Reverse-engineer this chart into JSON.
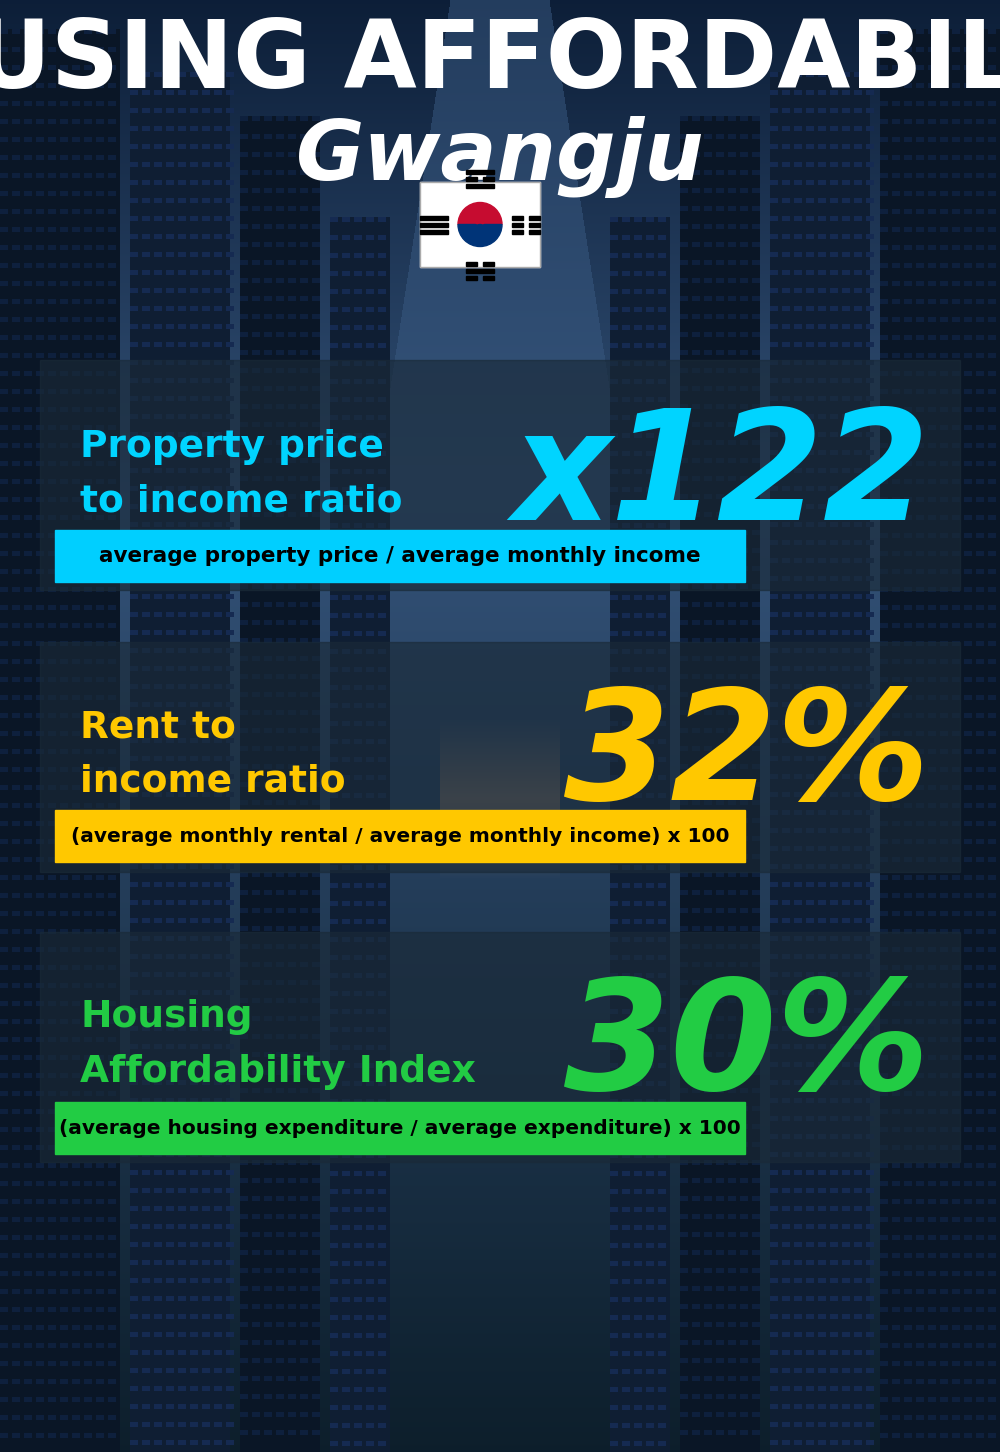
{
  "title_line1": "HOUSING AFFORDABILITY",
  "title_line2": "Gwangju",
  "section1_label_line1": "Property price",
  "section1_label_line2": "to income ratio",
  "section1_value": "x122",
  "section1_label_color": "#00d4ff",
  "section1_value_color": "#00d4ff",
  "section1_formula": "average property price / average monthly income",
  "section1_formula_bg": "#00cfff",
  "section2_label_line1": "Rent to",
  "section2_label_line2": "income ratio",
  "section2_value": "32%",
  "section2_label_color": "#ffc800",
  "section2_value_color": "#ffc800",
  "section2_formula": "(average monthly rental / average monthly income) x 100",
  "section2_formula_bg": "#ffc800",
  "section3_label_line1": "Housing",
  "section3_label_line2": "Affordability Index",
  "section3_value": "30%",
  "section3_label_color": "#22cc44",
  "section3_value_color": "#22cc44",
  "section3_formula": "(average housing expenditure / average expenditure) x 100",
  "section3_formula_bg": "#22cc44",
  "bg_color": "#0d1b2a",
  "title_color": "#ffffff",
  "formula_text_color": "#000000",
  "overlay_color": "#1a2a38",
  "overlay_alpha": 0.65
}
